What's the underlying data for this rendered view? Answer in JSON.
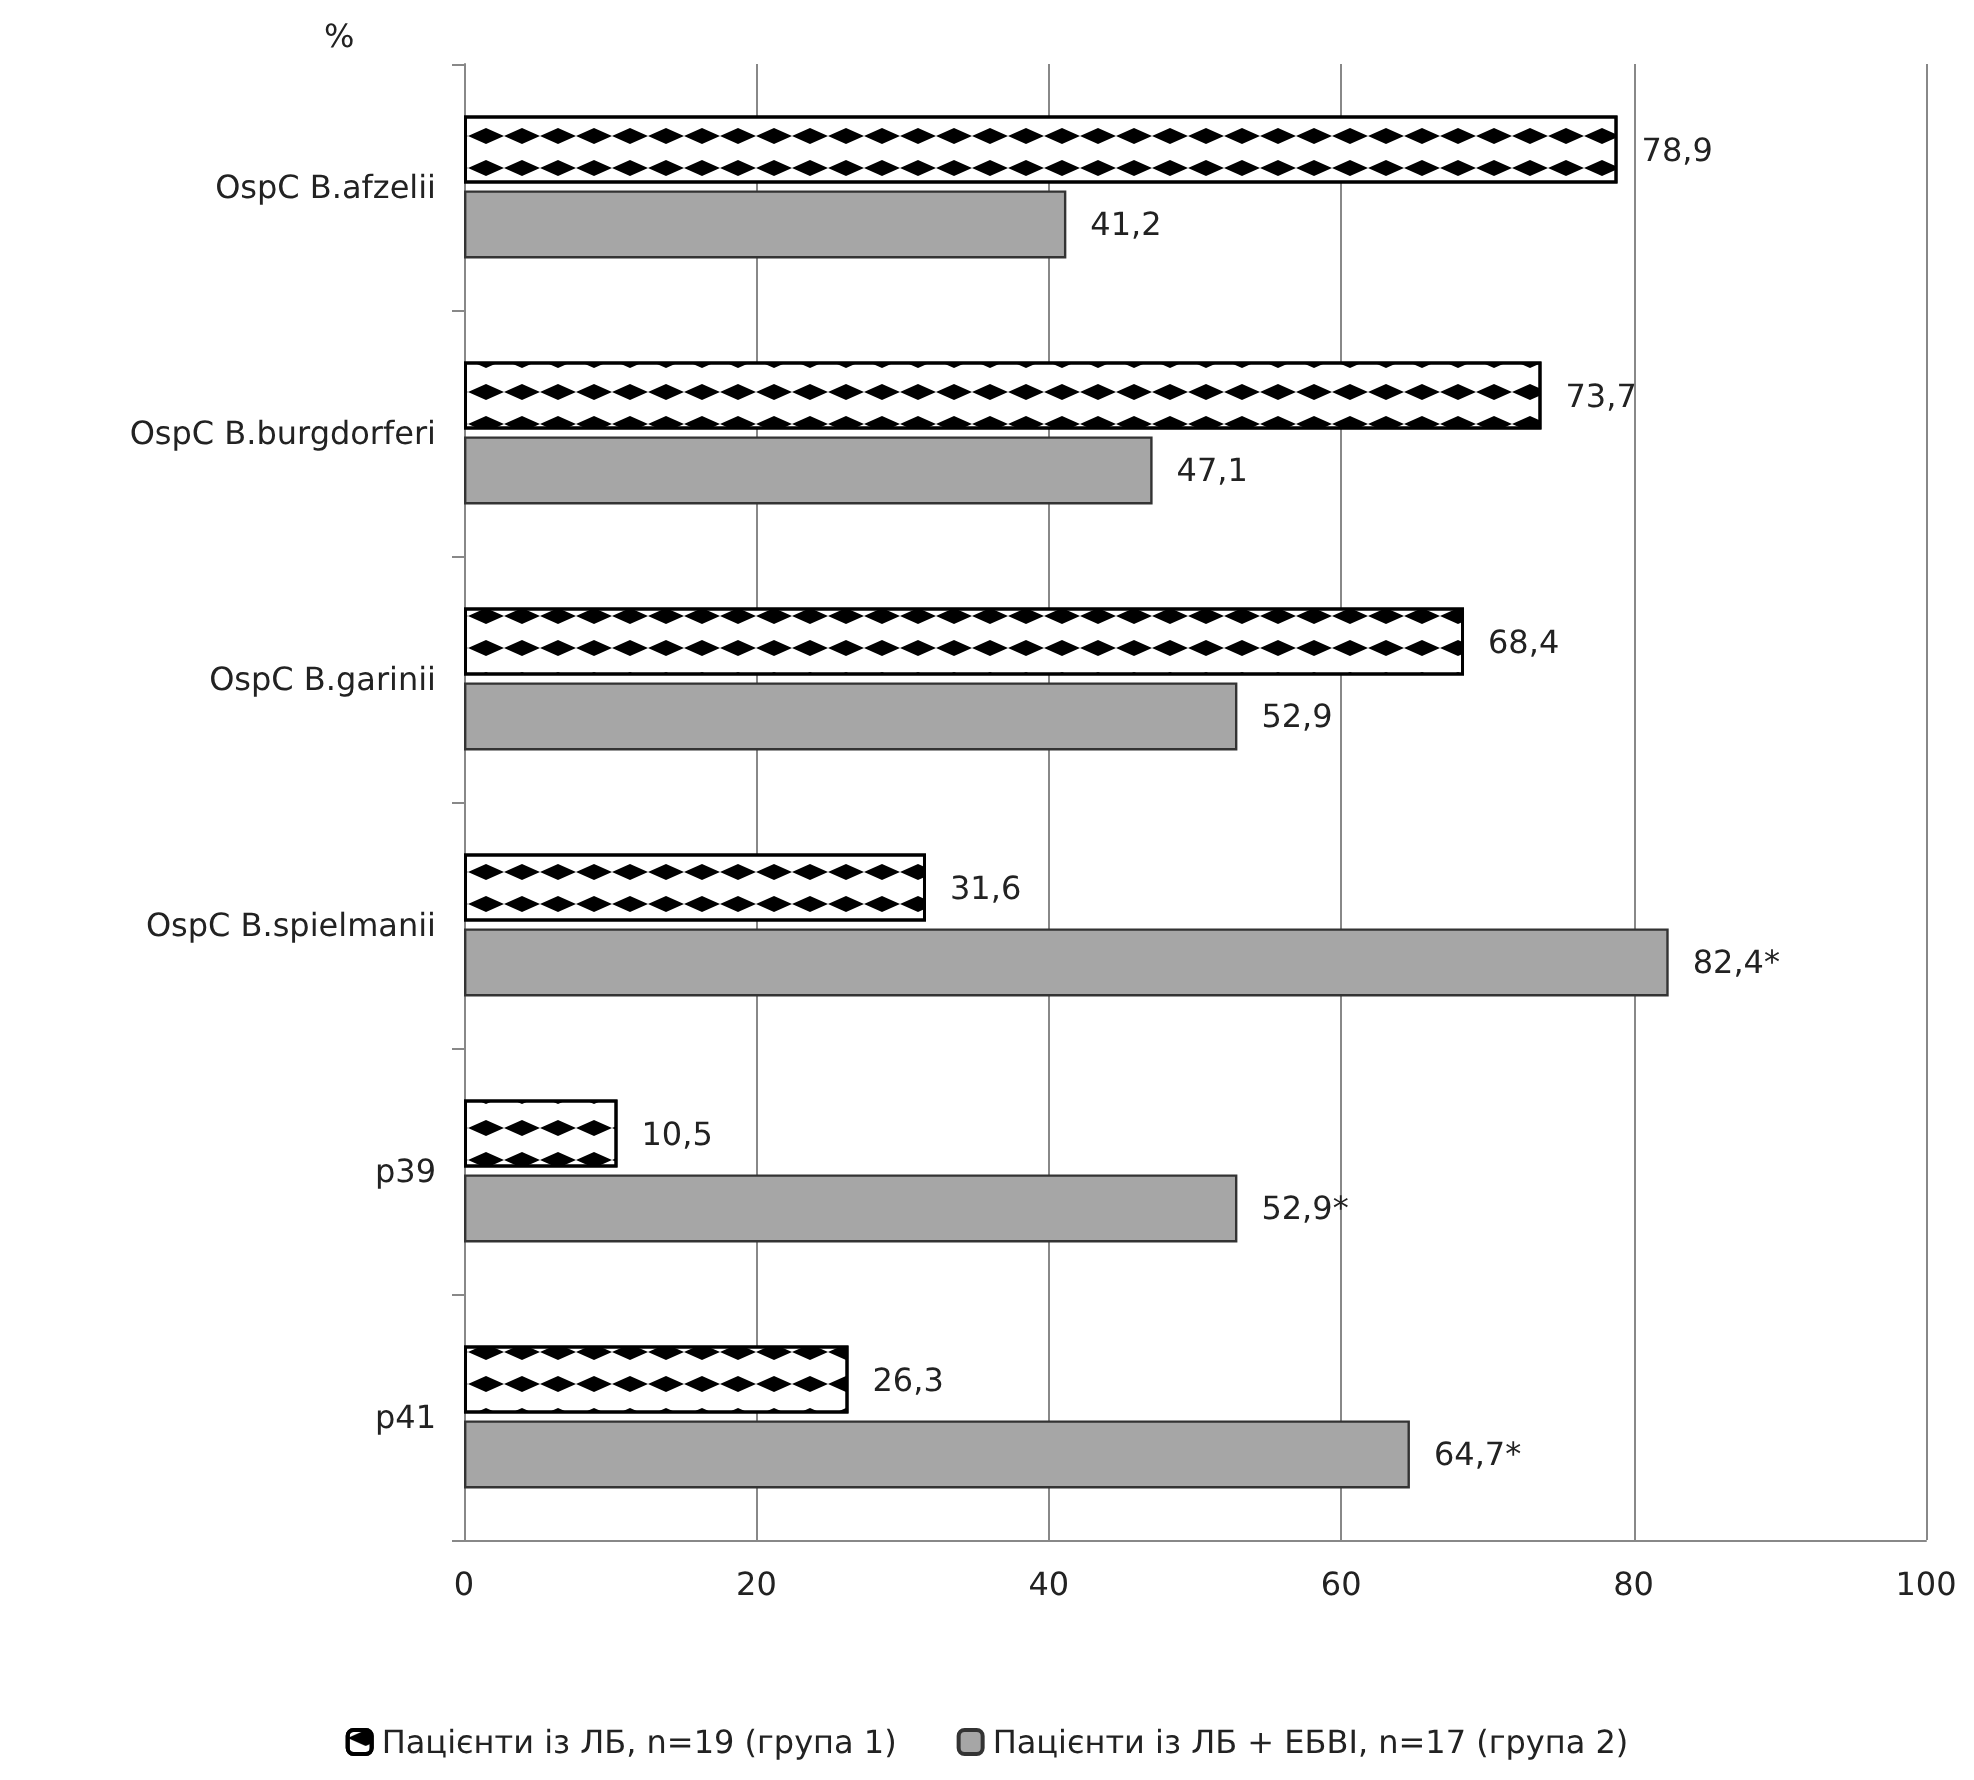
{
  "chart_data": {
    "type": "bar",
    "orientation": "horizontal",
    "categories": [
      "OspC B.afzelii",
      "OspC B.burgdorferi",
      "OspC B.garinii",
      "OspC B.spielmanii",
      "p39",
      "p41"
    ],
    "series": [
      {
        "name": "Пацієнти із ЛБ, n=19 (група 1)",
        "color": "#000000",
        "values": [
          78.9,
          73.7,
          68.4,
          31.6,
          10.5,
          26.3
        ],
        "value_labels": [
          "78,9",
          "73,7",
          "68,4",
          "31,6",
          "10,5",
          "26,3"
        ]
      },
      {
        "name": "Пацієнти із ЛБ + ЕБВІ, n=17 (група 2)",
        "color": "#a6a6a6",
        "values": [
          41.2,
          47.1,
          52.9,
          82.4,
          52.9,
          64.7
        ],
        "value_labels": [
          "41,2",
          "47,1",
          "52,9",
          "82,4*",
          "52,9*",
          "64,7*"
        ]
      }
    ],
    "xlim": [
      0,
      100
    ],
    "xticks": [
      0,
      20,
      40,
      60,
      80,
      100
    ],
    "grid": "x",
    "legend": "bottom",
    "annotations": [
      "%"
    ]
  }
}
